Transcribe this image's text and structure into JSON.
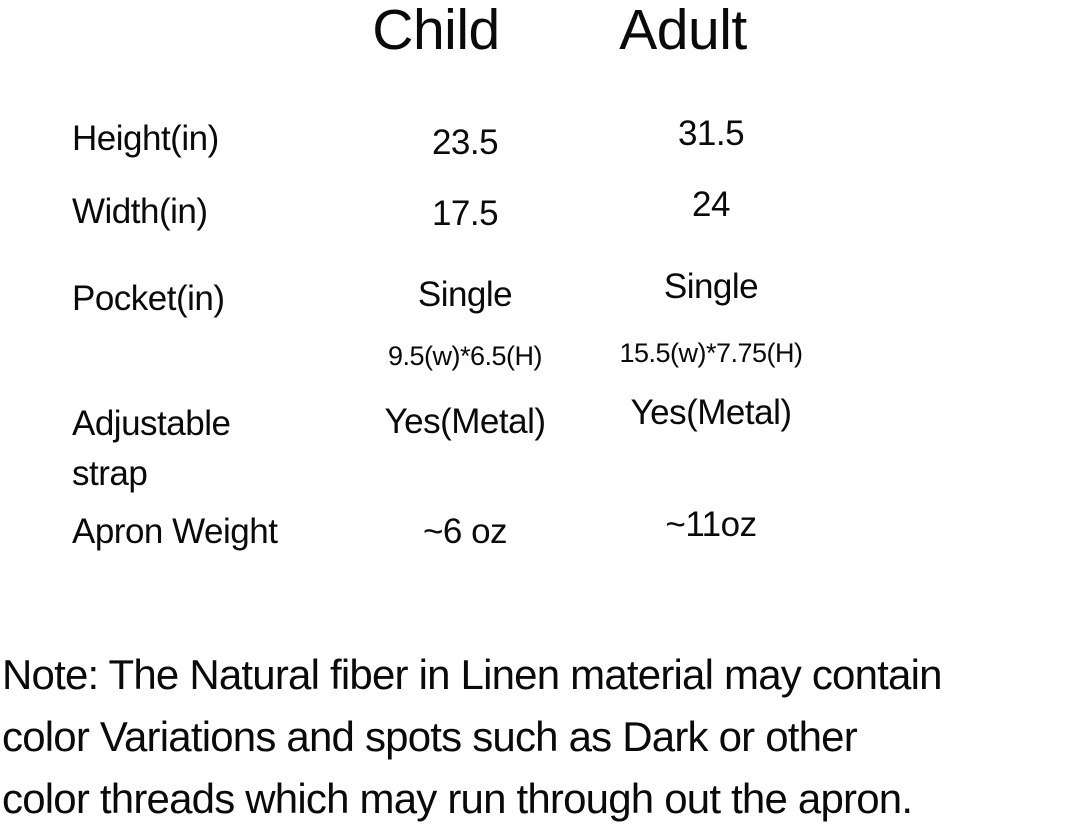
{
  "table": {
    "columns": [
      "Child",
      "Adult"
    ],
    "rows": [
      {
        "label": "Height(in)",
        "child": "23.5",
        "adult": "31.5"
      },
      {
        "label": "Width(in)",
        "child": "17.5",
        "adult": "24"
      },
      {
        "label": "Pocket(in)",
        "child": "Single",
        "adult": "Single"
      },
      {
        "label": "",
        "child": "9.5(w)*6.5(H)",
        "adult": "15.5(w)*7.75(H)"
      },
      {
        "label": "Adjustable strap",
        "child": "Yes(Metal)",
        "adult": "Yes(Metal)"
      },
      {
        "label": "Apron Weight",
        "child": "~6 oz",
        "adult": "~11oz"
      }
    ]
  },
  "note": {
    "lines": [
      "Note: The Natural fiber in Linen material may contain",
      "color Variations and spots such as Dark or other",
      "color threads which may run through out the apron."
    ]
  },
  "colors": {
    "text": "#0a0a0a",
    "background": "#ffffff"
  }
}
